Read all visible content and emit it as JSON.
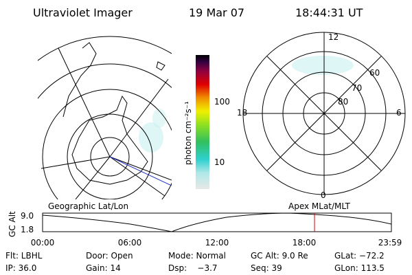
{
  "header": {
    "title": "Ultraviolet Imager",
    "date": "19 Mar 07",
    "time": "18:44:31 UT"
  },
  "colorbar": {
    "label": "photon cm⁻²s⁻¹",
    "ticks": [
      "100",
      "10"
    ]
  },
  "polar": {
    "hour_labels": [
      "12",
      "6",
      "0",
      "18"
    ],
    "lat_labels": [
      "60",
      "70",
      "80"
    ]
  },
  "timeline": {
    "left_label": "Geographic Lat/Lon",
    "right_label": "Apex MLat/MLT",
    "axis_label": "GC Alt",
    "y_labels": [
      "9.0",
      "1.8"
    ],
    "x_labels": [
      "00:00",
      "06:00",
      "12:00",
      "18:00",
      "23:59"
    ]
  },
  "info": {
    "rows": [
      [
        "Flt: LBHL",
        "Door: Open",
        "Mode: Normal",
        "GC Alt: 9.0 Re",
        "GLat: −72.2"
      ],
      [
        "IP: 36.0",
        "Gain: 14",
        "Dsp:    −3.7",
        "Seq: 39",
        "GLon: 113.5"
      ]
    ]
  }
}
